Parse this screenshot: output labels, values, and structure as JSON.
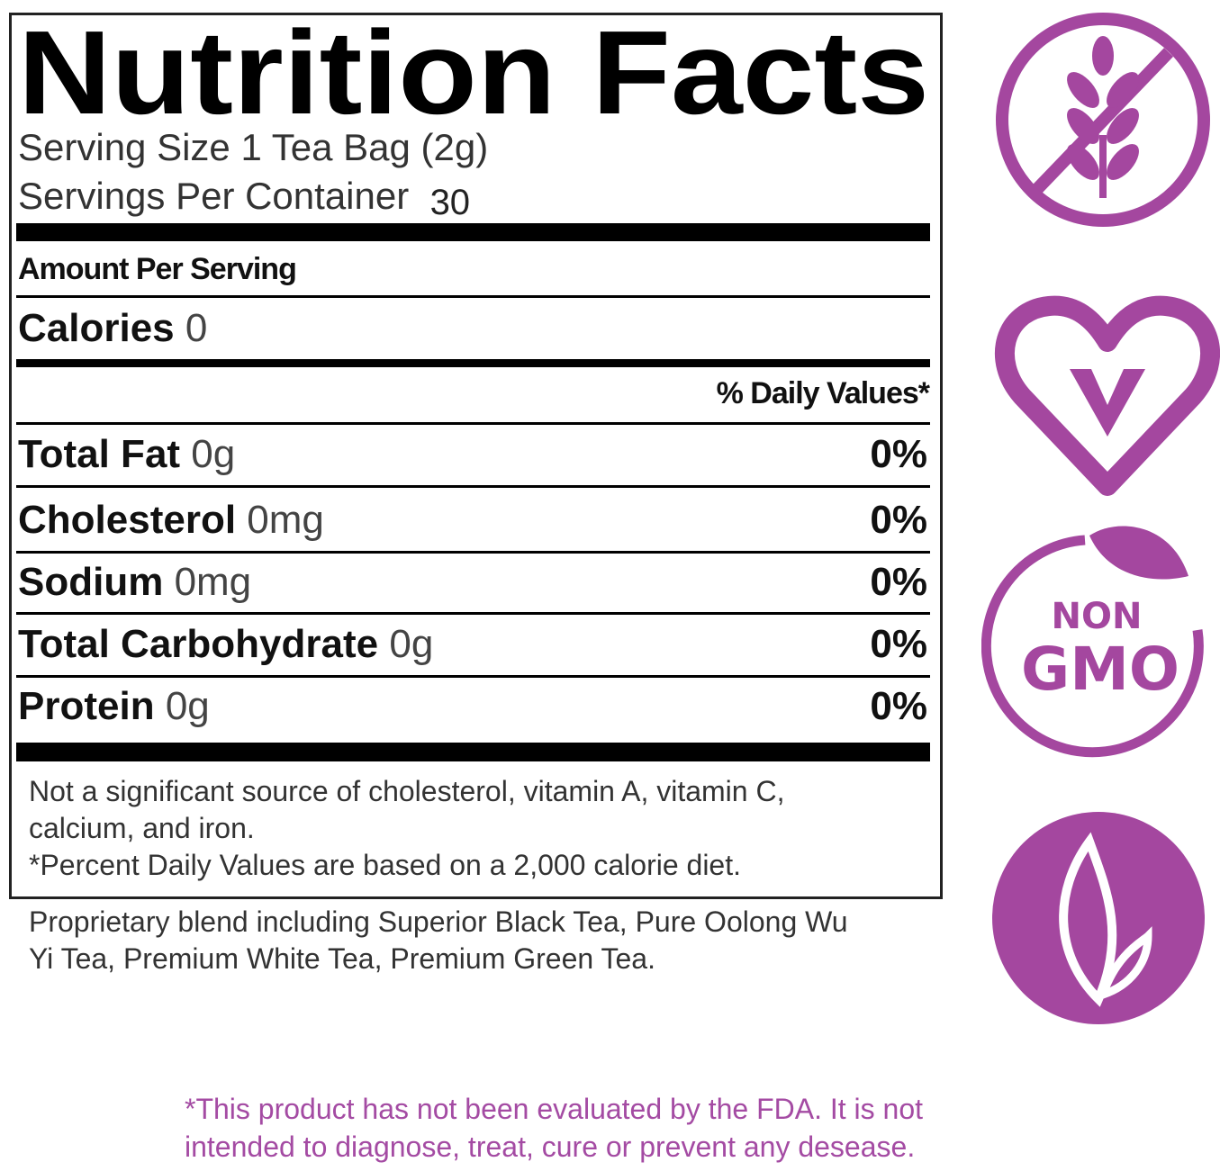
{
  "label": {
    "title": "Nutrition Facts",
    "serving_size": {
      "label": "Serving Size",
      "value": "1 Tea Bag (2g)"
    },
    "servings_per_container": {
      "label": "Servings Per Container",
      "value": "30"
    },
    "amount_per_serving": "Amount Per Serving",
    "calories": {
      "label": "Calories",
      "value": "0"
    },
    "daily_values_header": "% Daily Values*",
    "rows": [
      {
        "name": "Total Fat",
        "amount": "0g",
        "dv": "0%"
      },
      {
        "name": "Cholesterol",
        "amount": "0mg",
        "dv": "0%"
      },
      {
        "name": "Sodium",
        "amount": "0mg",
        "dv": "0%"
      },
      {
        "name": "Total Carbohydrate",
        "amount": "0g",
        "dv": "0%"
      },
      {
        "name": "Protein",
        "amount": "0g",
        "dv": "0%"
      }
    ],
    "footnotes": [
      "Not a significant source of cholesterol, vitamin A, vitamin C, calcium, and iron.",
      "*Percent Daily Values are based on a 2,000 calorie diet."
    ]
  },
  "ingredients": "Proprietary blend including Superior Black Tea, Pure Oolong Wu Yi Tea, Premium White Tea, Premium Green Tea.",
  "badges": {
    "non_gmo": {
      "line1": "NON",
      "line2": "GMO"
    }
  },
  "disclaimer": "*This product has not been evaluated by the FDA. It is not intended to diagnose, treat, cure or prevent any desease."
}
